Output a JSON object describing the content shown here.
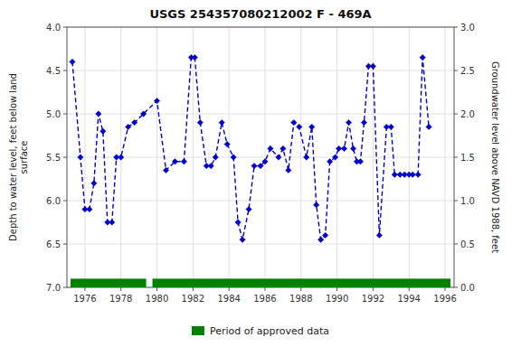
{
  "chart_data": {
    "type": "line",
    "title": "USGS 254357080212002 F  - 469A",
    "ylabel": "Depth to water level, feet below land\nsurface",
    "y2label": "Groundwater level above NAVD 1988, feet",
    "xlim": [
      1975.0,
      1996.5
    ],
    "xticks": [
      1976,
      1978,
      1980,
      1982,
      1984,
      1986,
      1988,
      1990,
      1992,
      1994,
      1996
    ],
    "ylim": [
      7.0,
      4.0
    ],
    "yticks": [
      {
        "value": 4.0,
        "label": "4.0"
      },
      {
        "value": 4.5,
        "label": "4.5"
      },
      {
        "value": 5.0,
        "label": "5.0"
      },
      {
        "value": 5.5,
        "label": "5.5"
      },
      {
        "value": 6.0,
        "label": "6.0"
      },
      {
        "value": 6.5,
        "label": "6.5"
      },
      {
        "value": 7.0,
        "label": "7.0"
      }
    ],
    "y2lim": [
      0.0,
      3.0
    ],
    "y2ticks": [
      {
        "value": 0.0,
        "label": "0.0"
      },
      {
        "value": 0.5,
        "label": "0.5"
      },
      {
        "value": 1.0,
        "label": "1.0"
      },
      {
        "value": 1.5,
        "label": "1.5"
      },
      {
        "value": 2.0,
        "label": "2.0"
      },
      {
        "value": 2.5,
        "label": "2.5"
      },
      {
        "value": 3.0,
        "label": "3.0"
      }
    ],
    "grid": true,
    "legend": "bottom",
    "x": [
      1975.3,
      1975.75,
      1976.0,
      1976.25,
      1976.5,
      1976.75,
      1977.0,
      1977.25,
      1977.5,
      1977.75,
      1978.0,
      1978.4,
      1978.75,
      1979.25,
      1980.0,
      1980.5,
      1981.0,
      1981.5,
      1981.9,
      1982.1,
      1982.4,
      1982.75,
      1983.0,
      1983.25,
      1983.6,
      1983.9,
      1984.25,
      1984.5,
      1984.75,
      1985.1,
      1985.4,
      1985.75,
      1986.0,
      1986.3,
      1986.75,
      1987.0,
      1987.3,
      1987.6,
      1987.9,
      1988.3,
      1988.6,
      1988.85,
      1989.1,
      1989.35,
      1989.6,
      1989.9,
      1990.1,
      1990.4,
      1990.65,
      1990.9,
      1991.1,
      1991.3,
      1991.5,
      1991.75,
      1992.0,
      1992.35,
      1992.75,
      1993.0,
      1993.2,
      1993.5,
      1993.75,
      1994.0,
      1994.2,
      1994.5,
      1994.75,
      1995.1
    ],
    "series": [
      {
        "color": "#0000cc",
        "marker": "diamond",
        "line_style": "dashed",
        "values": [
          4.4,
          5.5,
          6.1,
          6.1,
          5.8,
          5.0,
          5.2,
          6.25,
          6.25,
          5.5,
          5.5,
          5.15,
          5.1,
          5.0,
          4.85,
          5.65,
          5.55,
          5.55,
          4.35,
          4.35,
          5.1,
          5.6,
          5.6,
          5.5,
          5.1,
          5.35,
          5.5,
          6.25,
          6.45,
          6.1,
          5.6,
          5.6,
          5.55,
          5.4,
          5.5,
          5.4,
          5.65,
          5.1,
          5.15,
          5.5,
          5.15,
          6.05,
          6.45,
          6.4,
          5.55,
          5.5,
          5.4,
          5.4,
          5.1,
          5.4,
          5.55,
          5.55,
          5.1,
          4.45,
          4.45,
          6.4,
          5.15,
          5.15,
          5.7,
          5.7,
          5.7,
          5.7,
          5.7,
          5.7,
          4.35,
          5.15
        ]
      }
    ],
    "approved": {
      "name": "Period of approved data",
      "color": "#008000",
      "periods": [
        [
          1975.2,
          1979.4
        ],
        [
          1979.75,
          1996.3
        ]
      ],
      "y_top": 7.0,
      "thickness": 0.1
    }
  }
}
